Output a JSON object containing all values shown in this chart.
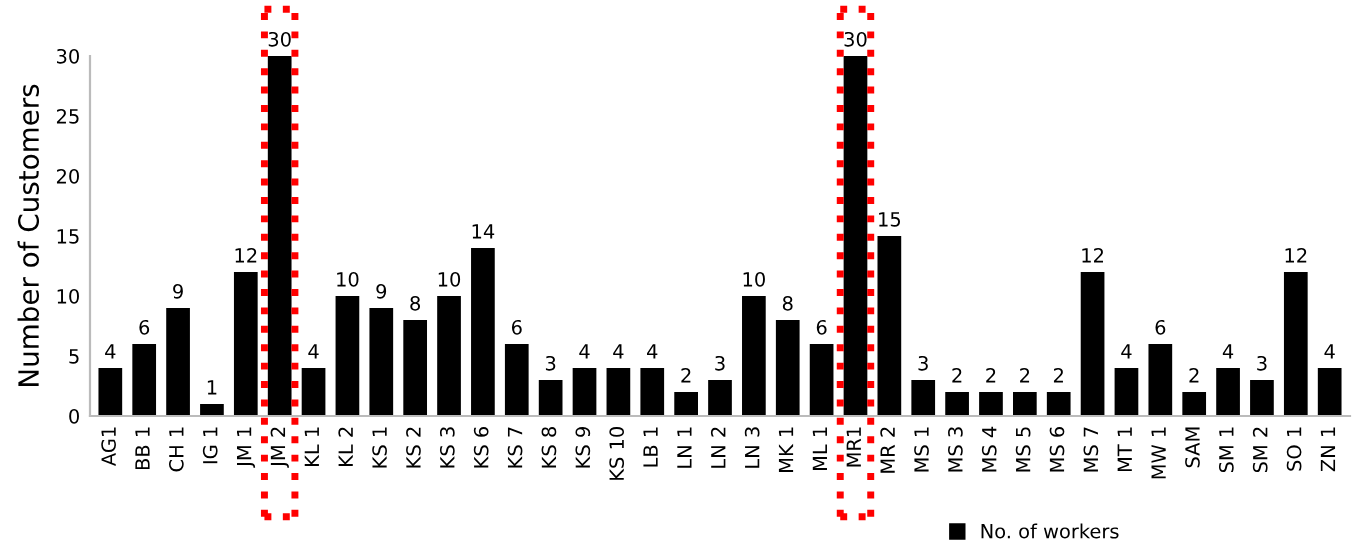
{
  "chart_data": {
    "type": "bar",
    "ylabel": "Number of Customers",
    "categories": [
      "AG1",
      "BB 1",
      "CH 1",
      "IG 1",
      "JM 1",
      "JM 2",
      "KL 1",
      "KL 2",
      "KS 1",
      "KS 2",
      "KS 3",
      "KS 6",
      "KS 7",
      "KS 8",
      "KS 9",
      "KS 10",
      "LB 1",
      "LN 1",
      "LN 2",
      "LN 3",
      "MK 1",
      "ML 1",
      "MR1",
      "MR 2",
      "MS 1",
      "MS 3",
      "MS 4",
      "MS 5",
      "MS 6",
      "MS 7",
      "MT 1",
      "MW 1",
      "SAM",
      "SM 1",
      "SM 2",
      "SO 1",
      "ZN 1"
    ],
    "series": [
      {
        "name": "No. of workers",
        "color": "#000000",
        "values": [
          4,
          6,
          9,
          1,
          12,
          30,
          4,
          10,
          9,
          8,
          10,
          14,
          6,
          3,
          4,
          4,
          4,
          2,
          3,
          10,
          8,
          6,
          30,
          15,
          3,
          2,
          2,
          2,
          2,
          12,
          4,
          6,
          2,
          4,
          3,
          12,
          4
        ]
      }
    ],
    "ylim": [
      0,
      30
    ],
    "yticks": [
      0,
      5,
      10,
      15,
      20,
      25,
      30
    ],
    "grid": false,
    "legend": "bottom",
    "data_labels": true
  }
}
